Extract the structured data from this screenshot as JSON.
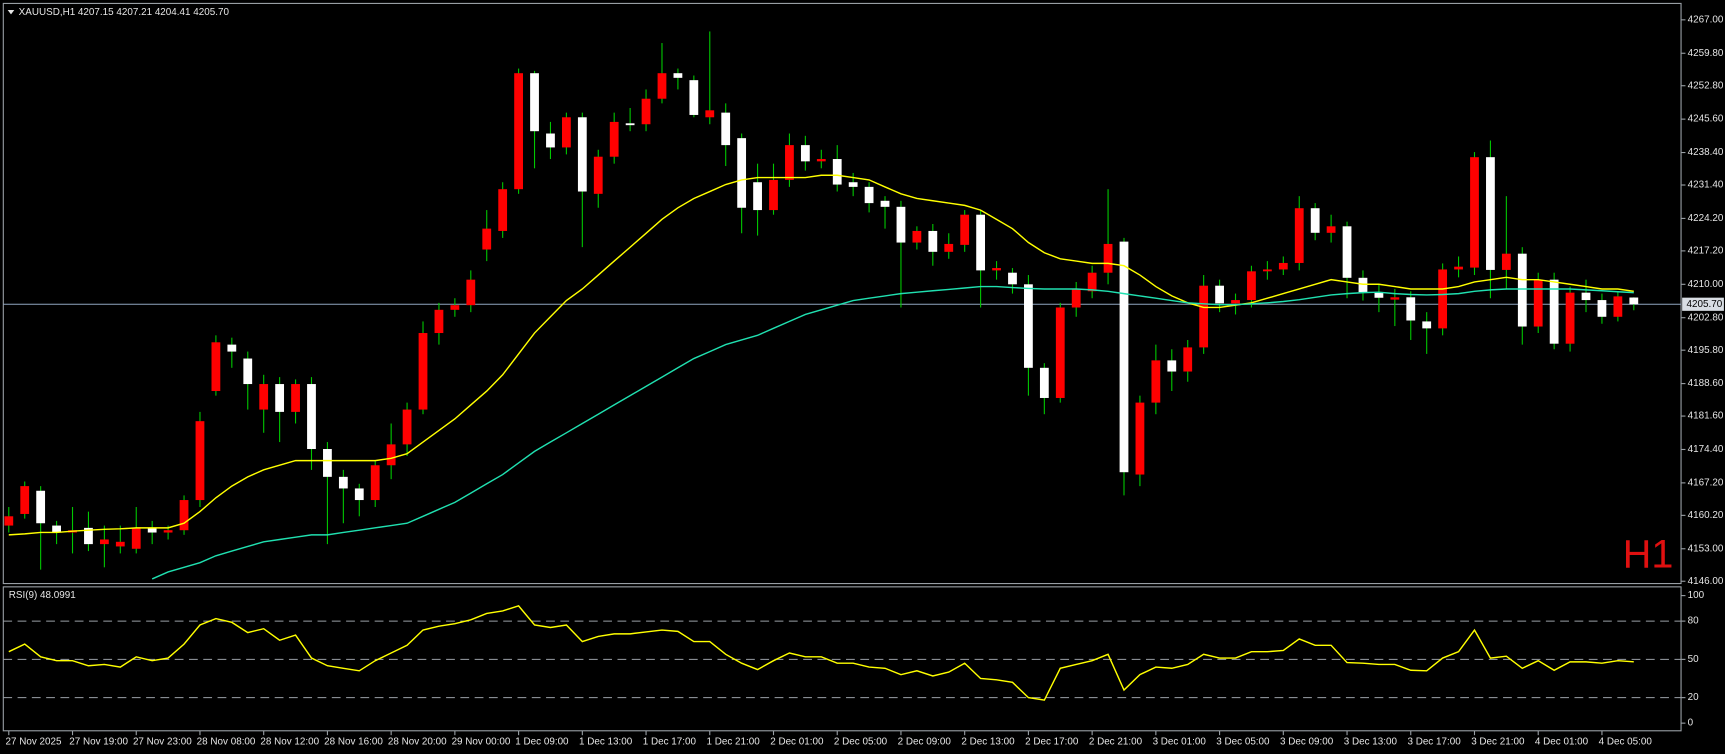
{
  "chart_data": {
    "type": "candlestick",
    "title": "XAUUSD,H1  4207.15 4207.21 4204.41 4205.70",
    "timeframe_label": "H1",
    "categories": [
      "27 Nov 2025",
      null,
      null,
      null,
      "27 Nov 19:00",
      null,
      null,
      null,
      "27 Nov 23:00",
      null,
      null,
      null,
      "28 Nov 08:00",
      null,
      null,
      null,
      "28 Nov 12:00",
      null,
      null,
      null,
      "28 Nov 16:00",
      null,
      null,
      null,
      "28 Nov 20:00",
      null,
      null,
      null,
      "29 Nov 00:00",
      null,
      null,
      null,
      "1 Dec 09:00",
      null,
      null,
      null,
      "1 Dec 13:00",
      null,
      null,
      null,
      "1 Dec 17:00",
      null,
      null,
      null,
      "1 Dec 21:00",
      null,
      null,
      null,
      "2 Dec 01:00",
      null,
      null,
      null,
      "2 Dec 05:00",
      null,
      null,
      null,
      "2 Dec 09:00",
      null,
      null,
      null,
      "2 Dec 13:00",
      null,
      null,
      null,
      "2 Dec 17:00",
      null,
      null,
      null,
      "2 Dec 21:00",
      null,
      null,
      null,
      "3 Dec 01:00",
      null,
      null,
      null,
      "3 Dec 05:00",
      null,
      null,
      null,
      "3 Dec 09:00",
      null,
      null,
      null,
      "3 Dec 13:00",
      null,
      null,
      null,
      "3 Dec 17:00",
      null,
      null,
      null,
      "3 Dec 21:00",
      null,
      null,
      null,
      "4 Dec 01:00",
      null,
      null,
      null,
      "4 Dec 05:00",
      null,
      null
    ],
    "open": [
      4158,
      4160.5,
      4165.5,
      4158,
      4156.5,
      4157.5,
      4154,
      4153.5,
      4153,
      4157.5,
      4156.5,
      4157,
      4163.5,
      4187,
      4197,
      4194,
      4183,
      4188.5,
      4182.5,
      4188.5,
      4174.5,
      4168.5,
      4166,
      4163.5,
      4171,
      4175.5,
      4183,
      4199.5,
      4204.5,
      4205.5,
      4217.5,
      4221.5,
      4230.5,
      4255.5,
      4242.5,
      4239.5,
      4246,
      4229.5,
      4237.5,
      4244.7,
      4244.5,
      4250,
      4255.5,
      4254,
      4246,
      4247,
      4241.5,
      4232,
      4226,
      4232.5,
      4240,
      4236.5,
      4237,
      4232,
      4231,
      4228,
      4226.7,
      4219,
      4221.5,
      4217,
      4218.5,
      4225,
      4213,
      4212.5,
      4210,
      4192,
      4185.5,
      4205,
      4208.5,
      4212.5,
      4219.2,
      4169,
      4184.5,
      4193.6,
      4191.2,
      4196.4,
      4209.7,
      4205.9,
      4206.6,
      4212.8,
      4213.2,
      4214.6,
      4226.4,
      4221.1,
      4222.5,
      4211.4,
      4208.3,
      4206.7,
      4207.2,
      4202,
      4200.5,
      4213.2,
      4213.6,
      4237.4,
      4213.1,
      4216.6,
      4200.9,
      4211,
      4197.2,
      4208.2,
      4206.6,
      4203,
      4207.15
    ],
    "high": [
      4162,
      4167.5,
      4166.5,
      4159,
      4162,
      4161,
      4158,
      4158,
      4162,
      4159,
      4158,
      4164.5,
      4182.5,
      4199,
      4198.5,
      4195.5,
      4190.5,
      4190,
      4189.5,
      4190,
      4176,
      4170,
      4167,
      4172,
      4180,
      4184.5,
      4202,
      4206,
      4207,
      4213,
      4226,
      4232,
      4256.5,
      4256,
      4245,
      4247,
      4247,
      4239,
      4247,
      4248,
      4252,
      4262,
      4256.5,
      4255,
      4264.5,
      4249,
      4242.5,
      4236,
      4236,
      4242.5,
      4242,
      4239,
      4240,
      4234,
      4232,
      4229,
      4228,
      4222.5,
      4223,
      4221,
      4226,
      4226,
      4215,
      4213.5,
      4212,
      4193,
      4206,
      4210.5,
      4214,
      4230.5,
      4220,
      4186,
      4197,
      4196,
      4198,
      4212,
      4211,
      4208,
      4214,
      4215,
      4216,
      4229,
      4227.5,
      4225,
      4223.5,
      4213,
      4210,
      4209,
      4208.5,
      4204,
      4214.5,
      4216,
      4238.5,
      4241,
      4229,
      4218,
      4212.5,
      4212.5,
      4209.5,
      4211,
      4208,
      4208.5,
      4207.21
    ],
    "low": [
      4156.5,
      4159.5,
      4148.5,
      4154,
      4152,
      4152.5,
      4149,
      4152,
      4152,
      4154,
      4155,
      4156,
      4162,
      4186,
      4192,
      4183,
      4178,
      4176,
      4180,
      4170,
      4154,
      4158.5,
      4160,
      4162,
      4168,
      4173,
      4182,
      4197,
      4203,
      4204,
      4215,
      4220,
      4229.5,
      4235,
      4237,
      4238,
      4218,
      4226.5,
      4236,
      4243,
      4243,
      4249,
      4252,
      4246,
      4244.5,
      4235.5,
      4221,
      4220.5,
      4225,
      4231,
      4234.5,
      4235,
      4230,
      4229,
      4225.5,
      4222,
      4205,
      4217.5,
      4214,
      4215.5,
      4217,
      4205,
      4211,
      4208,
      4186,
      4182,
      4184.5,
      4203,
      4207,
      4210,
      4164.5,
      4166.5,
      4182,
      4187,
      4189,
      4195,
      4204,
      4203.5,
      4205,
      4211,
      4212,
      4213,
      4219.5,
      4219,
      4207,
      4206.5,
      4204,
      4201,
      4198,
      4195,
      4199,
      4211.5,
      4212,
      4207,
      4209,
      4197,
      4199.5,
      4196,
      4195.5,
      4204,
      4201.5,
      4202,
      4204.41
    ],
    "close": [
      4160,
      4166.5,
      4158.5,
      4156.5,
      4157,
      4154,
      4155,
      4154.5,
      4157.5,
      4156.5,
      4157,
      4163.5,
      4180.5,
      4197.5,
      4195.5,
      4188.5,
      4188.5,
      4182.5,
      4188.5,
      4174.5,
      4168.5,
      4166,
      4163.5,
      4171,
      4175.5,
      4183,
      4199.5,
      4204.5,
      4205.5,
      4211,
      4222,
      4230.5,
      4255.5,
      4243,
      4239.5,
      4246,
      4230,
      4237.5,
      4245,
      4244.3,
      4250,
      4255.5,
      4254.5,
      4246.5,
      4247.5,
      4240,
      4226.5,
      4226,
      4232.5,
      4240,
      4236.5,
      4237,
      4231.5,
      4231,
      4227.5,
      4226.7,
      4219,
      4221.5,
      4217,
      4218.7,
      4225,
      4213,
      4213.5,
      4210,
      4192,
      4185.5,
      4205,
      4209,
      4212.5,
      4218.7,
      4169.5,
      4184.5,
      4193.6,
      4191.2,
      4196.4,
      4209.7,
      4205.9,
      4206.6,
      4212.8,
      4213.2,
      4214.6,
      4226.4,
      4221.1,
      4222.5,
      4211.4,
      4208.3,
      4207.1,
      4207.2,
      4202.2,
      4200.5,
      4213.2,
      4213.8,
      4237.4,
      4213.1,
      4216.6,
      4200.9,
      4211,
      4197.2,
      4208.2,
      4206.6,
      4203,
      4207.4,
      4205.7
    ],
    "up_color": "#ff0000",
    "down_color": "#ffffff",
    "wick_color": "#00c800",
    "series": [
      {
        "color": "#ffff00",
        "values": [
          4156,
          4156.2,
          4156.5,
          4156.5,
          4156.8,
          4157,
          4157.2,
          4157.3,
          4157.5,
          4157.5,
          4157.5,
          4158.5,
          4161,
          4164,
          4166.5,
          4168.5,
          4170,
          4171,
          4172,
          4172,
          4172,
          4172,
          4172,
          4172,
          4172.5,
          4173.5,
          4176,
          4178.5,
          4181,
          4184,
          4187,
          4190.5,
          4195,
          4199.5,
          4203,
          4206.5,
          4209,
          4212,
          4215,
          4218,
          4221,
          4224,
          4226.5,
          4228.5,
          4230,
          4231.5,
          4232.5,
          4233,
          4233,
          4233,
          4233,
          4233.5,
          4233.5,
          4233,
          4232.5,
          4231,
          4229.5,
          4228.5,
          4228,
          4227.5,
          4227,
          4226,
          4224,
          4222,
          4219,
          4216.8,
          4215.5,
          4215,
          4214.5,
          4214.5,
          4214,
          4212,
          4209.5,
          4207.5,
          4206,
          4205,
          4205,
          4205.5,
          4206,
          4207,
          4208,
          4209,
          4210,
          4211,
          4210.5,
          4210,
          4210,
          4209.5,
          4209,
          4209,
          4209,
          4209.5,
          4210.5,
          4211,
          4211.5,
          4211,
          4211,
          4210.5,
          4210,
          4209.5,
          4209,
          4209,
          4208.5
        ]
      },
      {
        "color": "#20e0b0",
        "values": [
          null,
          null,
          null,
          null,
          null,
          null,
          null,
          null,
          null,
          4146.5,
          4148,
          4149,
          4150,
          4151.5,
          4152.5,
          4153.5,
          4154.5,
          4155,
          4155.5,
          4156,
          4156,
          4156.5,
          4157,
          4157.5,
          4158,
          4158.5,
          4160,
          4161.5,
          4163,
          4165,
          4167,
          4169,
          4171.5,
          4174,
          4176,
          4178,
          4180,
          4182,
          4184,
          4186,
          4188,
          4190,
          4192,
          4194,
          4195.5,
          4197,
          4198,
          4199,
          4200.5,
          4202,
          4203.5,
          4204.5,
          4205.5,
          4206.5,
          4207,
          4207.5,
          4208,
          4208.3,
          4208.6,
          4208.9,
          4209.2,
          4209.5,
          4209.5,
          4209.3,
          4209.1,
          4209,
          4209,
          4209,
          4208.8,
          4208.5,
          4208,
          4207.5,
          4207,
          4206.5,
          4206,
          4205.8,
          4205.6,
          4205.6,
          4205.8,
          4206,
          4206.3,
          4206.7,
          4207.2,
          4207.7,
          4208,
          4208.2,
          4208.3,
          4208,
          4207.8,
          4207.7,
          4207.8,
          4208,
          4208.5,
          4208.8,
          4209,
          4209,
          4209,
          4209,
          4209,
          4208.8,
          4208.6,
          4208.4,
          4208.2
        ]
      }
    ],
    "ylim": [
      4145.5,
      4270.3
    ],
    "yticks": [
      {
        "value": 4267,
        "label": "4267.00"
      },
      {
        "value": 4259.8,
        "label": "4259.80"
      },
      {
        "value": 4252.8,
        "label": "4252.80"
      },
      {
        "value": 4245.6,
        "label": "4245.60"
      },
      {
        "value": 4238.4,
        "label": "4238.40"
      },
      {
        "value": 4231.4,
        "label": "4231.40"
      },
      {
        "value": 4224.2,
        "label": "4224.20"
      },
      {
        "value": 4217.2,
        "label": "4217.20"
      },
      {
        "value": 4210,
        "label": "4210.00"
      },
      {
        "value": 4202.8,
        "label": "4202.80"
      },
      {
        "value": 4195.8,
        "label": "4195.80"
      },
      {
        "value": 4188.6,
        "label": "4188.60"
      },
      {
        "value": 4181.6,
        "label": "4181.60"
      },
      {
        "value": 4174.4,
        "label": "4174.40"
      },
      {
        "value": 4167.2,
        "label": "4167.20"
      },
      {
        "value": 4160.2,
        "label": "4160.20"
      },
      {
        "value": 4153,
        "label": "4153.00"
      },
      {
        "value": 4146,
        "label": "4146.00"
      }
    ],
    "price_line": {
      "value": 4205.7,
      "label": "4205.70",
      "color": "#8fa6bf"
    },
    "rsi": {
      "label": "RSI(9) 48.0991",
      "color": "#ffff00",
      "ylim": [
        -6,
        106
      ],
      "yticks": [
        0,
        20,
        50,
        80,
        100
      ],
      "levels": [
        20,
        50,
        80
      ],
      "values": [
        56,
        62,
        52,
        49,
        49,
        45,
        46,
        44,
        52,
        49,
        51,
        62,
        77,
        82,
        79,
        71,
        74,
        65,
        69,
        51,
        45,
        43,
        41,
        49,
        55,
        61,
        73,
        76,
        78,
        81,
        86,
        88,
        92,
        77,
        75,
        77,
        64,
        68,
        70,
        70,
        71.5,
        73,
        72,
        64,
        64,
        54,
        47,
        42,
        49,
        55,
        52,
        52,
        47,
        47,
        44,
        43,
        38,
        41,
        37,
        40,
        47,
        35,
        34,
        32,
        20,
        18,
        43,
        46,
        49,
        54,
        26,
        38,
        44,
        43,
        46,
        54,
        51,
        51,
        56,
        56,
        57,
        66,
        61,
        61,
        47.5,
        47,
        46,
        46,
        41.5,
        41,
        51,
        56,
        73,
        51,
        52.5,
        43,
        49,
        41.5,
        48,
        48,
        47,
        49,
        48.0991
      ]
    }
  }
}
